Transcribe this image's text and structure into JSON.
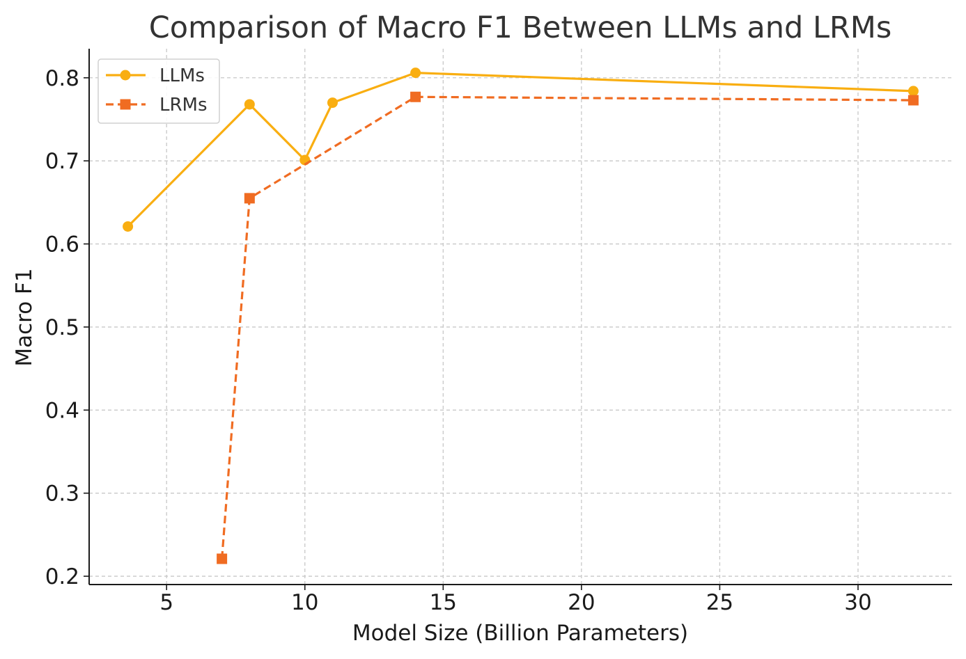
{
  "chart_data": {
    "type": "line",
    "title": "Comparison of Macro F1 Between LLMs and LRMs",
    "xlabel": "Model Size (Billion Parameters)",
    "ylabel": "Macro F1",
    "xlim": [
      2.2,
      33.4
    ],
    "ylim": [
      0.19,
      0.835
    ],
    "xticks": [
      5,
      10,
      15,
      20,
      25,
      30
    ],
    "xtick_labels": [
      "5",
      "10",
      "15",
      "20",
      "25",
      "30"
    ],
    "yticks": [
      0.2,
      0.3,
      0.4,
      0.5,
      0.6,
      0.7,
      0.8
    ],
    "ytick_labels": [
      "0.2",
      "0.3",
      "0.4",
      "0.5",
      "0.6",
      "0.7",
      "0.8"
    ],
    "grid": true,
    "legend_position": "top-left",
    "series": [
      {
        "name": "LLMs",
        "color": "#F9AE11",
        "marker": "circle",
        "line_style": "solid",
        "x": [
          3.6,
          8,
          10,
          11,
          14,
          32
        ],
        "y": [
          0.621,
          0.768,
          0.701,
          0.77,
          0.806,
          0.784
        ]
      },
      {
        "name": "LRMs",
        "color": "#F06C22",
        "marker": "square",
        "line_style": "dashed",
        "x": [
          7,
          8,
          14,
          32
        ],
        "y": [
          0.221,
          0.655,
          0.777,
          0.773
        ]
      }
    ]
  }
}
